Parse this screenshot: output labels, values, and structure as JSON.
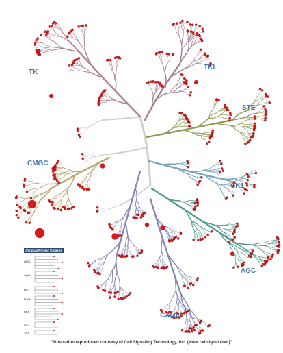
{
  "groups": {
    "TK": "TK",
    "TKL": "TKL",
    "STE": "STE",
    "CK1": "CK1",
    "AGC": "AGC",
    "CAMK": "CAMK",
    "CMGC": "CMGC"
  },
  "colors": {
    "TK": "#b07d92",
    "TKL": "#a07f95",
    "STE": "#8f9a55",
    "CK1": "#7aa3bd",
    "AGC": "#4f9a8c",
    "CAMK": "#8588b5",
    "CMGC": "#b9a670",
    "center": "#d0d0d0",
    "dot": "#d81a1a",
    "label": "#4a7aa8"
  },
  "atypical": {
    "title": "Atypical Protein Kinases",
    "families": [
      "ABC1",
      "Alpha",
      "Brd",
      "PDHK",
      "PIKK",
      "RIO",
      "TIF1"
    ]
  },
  "credit": "\"Illustration reproduced courtesy of Cell Signaling Technology, Inc. (www.cellsignal.com)\""
}
